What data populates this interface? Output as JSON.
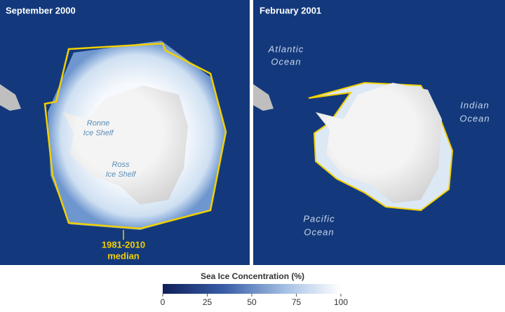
{
  "panels": [
    {
      "title": "September 2000",
      "labels": [
        {
          "lines": [
            "Ronne",
            "Ice Shelf"
          ]
        },
        {
          "lines": [
            "Ross",
            "Ice Shelf"
          ]
        },
        {
          "lines": [
            "1981-2010",
            "median"
          ]
        }
      ]
    },
    {
      "title": "February 2001",
      "labels": [
        {
          "lines": [
            "Atlantic",
            "Ocean"
          ]
        },
        {
          "lines": [
            "Indian",
            "Ocean"
          ]
        },
        {
          "lines": [
            "Pacific",
            "Ocean"
          ]
        }
      ]
    }
  ],
  "colorbar": {
    "title": "Sea Ice Concentration (%)",
    "lim": [
      0,
      100
    ],
    "ticks": [
      0,
      25,
      50,
      75,
      100
    ]
  }
}
